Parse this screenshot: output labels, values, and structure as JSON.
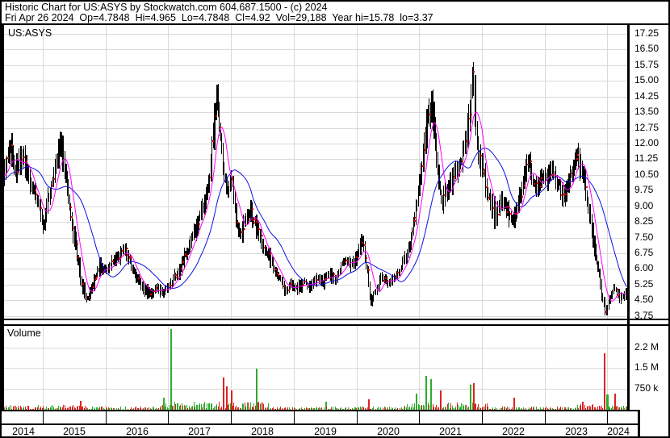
{
  "header": {
    "line1": "Historic Chart for US:ASYS by Stockwatch.com 604.687.1500 - (c) 2024",
    "line2": "Fri Apr 26 2024  Op=4.7848  Hi=4.965  Lo=4.7848  Cl=4.92  Vol=29,188  Year hi=15.78  lo=3.37"
  },
  "price_panel": {
    "symbol_label": "US:ASYS",
    "axis_labels": [
      "17.25",
      "16.50",
      "15.75",
      "15.00",
      "14.25",
      "13.50",
      "12.75",
      "12.00",
      "11.25",
      "10.50",
      "9.75",
      "9.00",
      "8.25",
      "7.50",
      "6.75",
      "6.00",
      "5.25",
      "4.50",
      "3.75"
    ]
  },
  "volume_panel": {
    "label": "Volume",
    "axis_labels": [
      "2.2 M",
      "1.5 M",
      "750 k"
    ],
    "axis_values_millions": [
      2.2,
      1.5,
      0.75
    ]
  },
  "x_axis": {
    "year_labels": [
      "2014",
      "2015",
      "2016",
      "2017",
      "2018",
      "2019",
      "2020",
      "2021",
      "2022",
      "2023",
      "2024"
    ]
  },
  "colors": {
    "background": "#FFFFFF",
    "frame": "#000000",
    "grid": "#D9D9D9",
    "candle": "#000000",
    "close_dot": "#EE0000",
    "ma_fast": "#FF00FF",
    "ma_slow": "#1010E0",
    "volume_up": "#2EAB2E",
    "volume_down": "#DD2222",
    "text": "#000000"
  },
  "chart_data": {
    "type": "candlestick",
    "symbol": "US:ASYS",
    "frequency": "weekly",
    "x_range_years": [
      2014.38,
      2024.33
    ],
    "price_axis": {
      "min": 3.75,
      "max": 17.25,
      "step": 0.75
    },
    "volume_axis": {
      "tick_labels": [
        "2.2 M",
        "1.5 M",
        "750 k"
      ],
      "tick_values_millions": [
        2.2,
        1.5,
        0.75
      ]
    },
    "last_bar": {
      "date": "Fri Apr 26 2024",
      "open": 4.7848,
      "high": 4.965,
      "low": 4.7848,
      "close": 4.92,
      "volume": 29188
    },
    "year_high": 15.78,
    "year_low": 3.37,
    "monthly_closes": [
      [
        2013.75,
        9.6
      ],
      [
        2013.85,
        9.9
      ],
      [
        2013.95,
        10.2
      ],
      [
        2014.05,
        10.5
      ],
      [
        2014.15,
        10.1
      ],
      [
        2014.25,
        10.6
      ],
      [
        2014.35,
        10.3
      ],
      [
        2014.42,
        11.2
      ],
      [
        2014.48,
        12.1
      ],
      [
        2014.55,
        10.7
      ],
      [
        2014.62,
        11.3
      ],
      [
        2014.72,
        11.0
      ],
      [
        2014.8,
        10.2
      ],
      [
        2014.88,
        9.6
      ],
      [
        2014.95,
        8.8
      ],
      [
        2015.0,
        8.0
      ],
      [
        2015.05,
        9.0
      ],
      [
        2015.12,
        9.8
      ],
      [
        2015.2,
        10.8
      ],
      [
        2015.28,
        12.1
      ],
      [
        2015.35,
        10.5
      ],
      [
        2015.42,
        9.0
      ],
      [
        2015.5,
        7.4
      ],
      [
        2015.58,
        5.8
      ],
      [
        2015.65,
        4.8
      ],
      [
        2015.72,
        4.6
      ],
      [
        2015.8,
        5.4
      ],
      [
        2015.9,
        6.2
      ],
      [
        2016.0,
        5.9
      ],
      [
        2016.1,
        6.3
      ],
      [
        2016.2,
        6.7
      ],
      [
        2016.3,
        6.9
      ],
      [
        2016.4,
        6.2
      ],
      [
        2016.5,
        5.5
      ],
      [
        2016.6,
        5.1
      ],
      [
        2016.7,
        4.8
      ],
      [
        2016.8,
        5.1
      ],
      [
        2016.9,
        4.9
      ],
      [
        2017.0,
        5.1
      ],
      [
        2017.1,
        5.6
      ],
      [
        2017.2,
        6.2
      ],
      [
        2017.3,
        6.9
      ],
      [
        2017.4,
        7.8
      ],
      [
        2017.5,
        8.6
      ],
      [
        2017.58,
        9.2
      ],
      [
        2017.65,
        10.4
      ],
      [
        2017.72,
        13.0
      ],
      [
        2017.77,
        14.3
      ],
      [
        2017.83,
        12.0
      ],
      [
        2017.88,
        10.3
      ],
      [
        2017.95,
        9.6
      ],
      [
        2018.0,
        10.4
      ],
      [
        2018.05,
        9.0
      ],
      [
        2018.12,
        7.5
      ],
      [
        2018.2,
        8.2
      ],
      [
        2018.3,
        8.8
      ],
      [
        2018.4,
        7.9
      ],
      [
        2018.5,
        7.1
      ],
      [
        2018.6,
        6.5
      ],
      [
        2018.7,
        6.0
      ],
      [
        2018.8,
        5.4
      ],
      [
        2018.88,
        4.9
      ],
      [
        2018.95,
        5.3
      ],
      [
        2019.05,
        5.0
      ],
      [
        2019.15,
        5.4
      ],
      [
        2019.25,
        5.1
      ],
      [
        2019.35,
        5.6
      ],
      [
        2019.45,
        5.3
      ],
      [
        2019.55,
        5.9
      ],
      [
        2019.65,
        5.5
      ],
      [
        2019.75,
        6.1
      ],
      [
        2019.85,
        6.4
      ],
      [
        2019.95,
        6.2
      ],
      [
        2020.0,
        6.6
      ],
      [
        2020.08,
        7.6
      ],
      [
        2020.17,
        5.9
      ],
      [
        2020.22,
        4.3
      ],
      [
        2020.3,
        5.0
      ],
      [
        2020.4,
        5.6
      ],
      [
        2020.5,
        5.3
      ],
      [
        2020.6,
        5.6
      ],
      [
        2020.7,
        6.1
      ],
      [
        2020.8,
        6.7
      ],
      [
        2020.88,
        7.8
      ],
      [
        2020.96,
        9.2
      ],
      [
        2021.05,
        11.5
      ],
      [
        2021.13,
        13.2
      ],
      [
        2021.2,
        14.0
      ],
      [
        2021.27,
        11.0
      ],
      [
        2021.35,
        9.2
      ],
      [
        2021.45,
        9.8
      ],
      [
        2021.55,
        10.6
      ],
      [
        2021.65,
        10.9
      ],
      [
        2021.72,
        11.8
      ],
      [
        2021.8,
        13.5
      ],
      [
        2021.85,
        15.2
      ],
      [
        2021.9,
        12.5
      ],
      [
        2021.95,
        11.2
      ],
      [
        2022.0,
        11.0
      ],
      [
        2022.1,
        9.6
      ],
      [
        2022.2,
        8.6
      ],
      [
        2022.3,
        9.3
      ],
      [
        2022.4,
        8.8
      ],
      [
        2022.5,
        8.2
      ],
      [
        2022.6,
        9.4
      ],
      [
        2022.73,
        11.3
      ],
      [
        2022.85,
        9.8
      ],
      [
        2022.95,
        10.3
      ],
      [
        2023.0,
        10.2
      ],
      [
        2023.1,
        10.9
      ],
      [
        2023.2,
        10.1
      ],
      [
        2023.3,
        9.4
      ],
      [
        2023.42,
        10.6
      ],
      [
        2023.54,
        11.5
      ],
      [
        2023.62,
        10.3
      ],
      [
        2023.7,
        8.7
      ],
      [
        2023.78,
        7.2
      ],
      [
        2023.85,
        5.8
      ],
      [
        2023.92,
        4.5
      ],
      [
        2023.97,
        3.9
      ],
      [
        2024.03,
        4.6
      ],
      [
        2024.1,
        5.1
      ],
      [
        2024.18,
        4.7
      ],
      [
        2024.25,
        4.6
      ],
      [
        2024.32,
        4.92
      ]
    ],
    "volume_spikes": [
      [
        2015.6,
        0.35,
        "down"
      ],
      [
        2016.92,
        0.45,
        "up"
      ],
      [
        2017.04,
        2.85,
        "up"
      ],
      [
        2017.86,
        1.15,
        "down"
      ],
      [
        2017.93,
        0.85,
        "down"
      ],
      [
        2018.0,
        0.7,
        "down"
      ],
      [
        2018.4,
        1.45,
        "up"
      ],
      [
        2019.5,
        0.3,
        "up"
      ],
      [
        2020.2,
        0.4,
        "down"
      ],
      [
        2020.95,
        0.6,
        "up"
      ],
      [
        2021.1,
        1.2,
        "up"
      ],
      [
        2021.17,
        1.1,
        "up"
      ],
      [
        2021.33,
        0.7,
        "down"
      ],
      [
        2021.8,
        0.9,
        "up"
      ],
      [
        2021.86,
        0.95,
        "down"
      ],
      [
        2022.5,
        0.45,
        "down"
      ],
      [
        2023.6,
        0.3,
        "down"
      ],
      [
        2023.95,
        2.0,
        "down"
      ],
      [
        2023.99,
        0.55,
        "up"
      ],
      [
        2024.12,
        0.6,
        "down"
      ]
    ],
    "volume_boost_windows": [
      [
        2014.38,
        2015.95,
        1.4
      ],
      [
        2016.85,
        2018.6,
        2.3
      ],
      [
        2020.75,
        2022.1,
        2.1
      ],
      [
        2023.5,
        2024.33,
        1.7
      ]
    ],
    "moving_averages": [
      {
        "name": "fast",
        "window_weeks": 10,
        "color": "#FF00FF"
      },
      {
        "name": "slow",
        "window_weeks": 30,
        "color": "#1010E0"
      }
    ]
  }
}
